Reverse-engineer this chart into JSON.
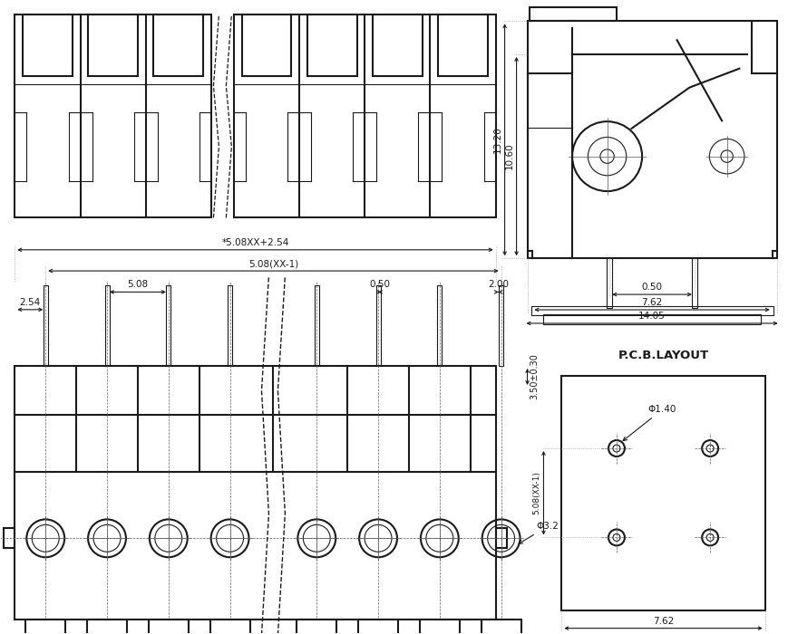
{
  "bg_color": "#ffffff",
  "lc": "#1a1a1a",
  "lw": 1.5,
  "tlw": 0.8,
  "annotations": {
    "dim_5_08xx_2_54": "*5.08XX+2.54",
    "dim_5_08xx_1": "5.08(XX-1)",
    "dim_5_08": "5.08",
    "dim_0_50": "0.50",
    "dim_2_00": "2.00",
    "dim_3_50": "3.50±0.30",
    "dim_2_54": "2.54",
    "dim_phi_3_2": "Φ3.2",
    "dim_13_20": "13.20",
    "dim_10_60": "10.60",
    "dim_0_50_side": "0.50",
    "dim_7_62_side": "7.62",
    "dim_14_05": "14.05",
    "pcb_title": "P.C.B.LAYOUT",
    "dim_phi_1_40": "Φ1.40",
    "dim_5_08xx_1_pcb": "5.08(XX-1)",
    "dim_7_62_pcb": "7.62"
  }
}
